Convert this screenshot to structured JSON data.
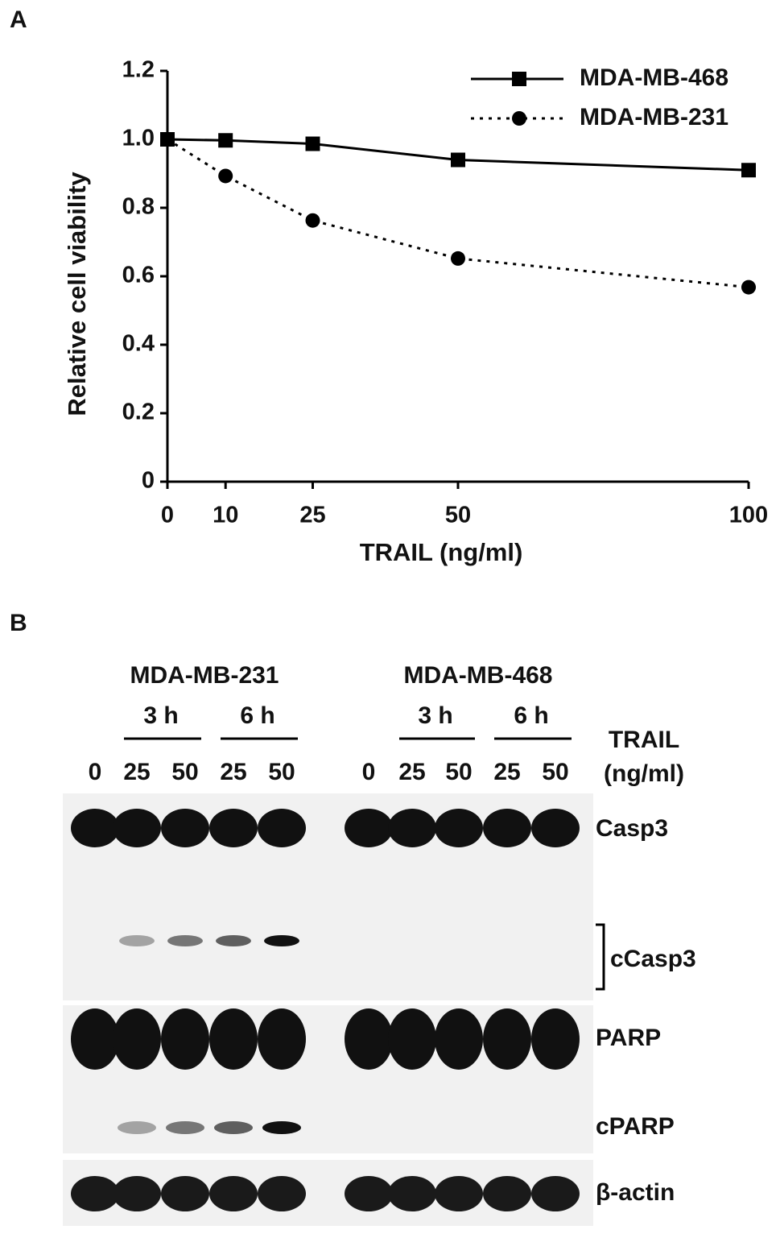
{
  "panel_labels": [
    "A",
    "B"
  ],
  "chart_data": {
    "type": "line",
    "xlabel": "TRAIL (ng/ml)",
    "ylabel": "Relative cell viability",
    "x": [
      0,
      10,
      25,
      50,
      100
    ],
    "xlim": [
      0,
      100
    ],
    "xticks": [
      0,
      10,
      25,
      50,
      100
    ],
    "ylim": [
      0,
      1.2
    ],
    "yticks": [
      0,
      0.2,
      0.4,
      0.6,
      0.8,
      {
        "value": 1,
        "label": "1.0"
      },
      1.2
    ],
    "legend": "upper right",
    "series": [
      {
        "name": "MDA-MB-468",
        "color": "#000000",
        "marker": "square",
        "dash": "solid",
        "values": [
          1.0,
          0.997,
          0.987,
          0.94,
          0.91
        ]
      },
      {
        "name": "MDA-MB-231",
        "color": "#000000",
        "marker": "circle",
        "dash": "dotted",
        "values": [
          1.0,
          0.893,
          0.763,
          0.652,
          0.568
        ]
      }
    ]
  },
  "blot": {
    "groups": [
      {
        "name": "MDA-MB-231",
        "times": [
          "3 h",
          "6 h"
        ],
        "lanes": [
          "0",
          "25",
          "50",
          "25",
          "50"
        ]
      },
      {
        "name": "MDA-MB-468",
        "times": [
          "3 h",
          "6 h"
        ],
        "lanes": [
          "0",
          "25",
          "50",
          "25",
          "50"
        ]
      }
    ],
    "treatment": [
      "TRAIL",
      "(ng/ml)"
    ],
    "bands": [
      "Casp3",
      "cCasp3",
      "PARP",
      "cPARP",
      "β-actin"
    ]
  }
}
